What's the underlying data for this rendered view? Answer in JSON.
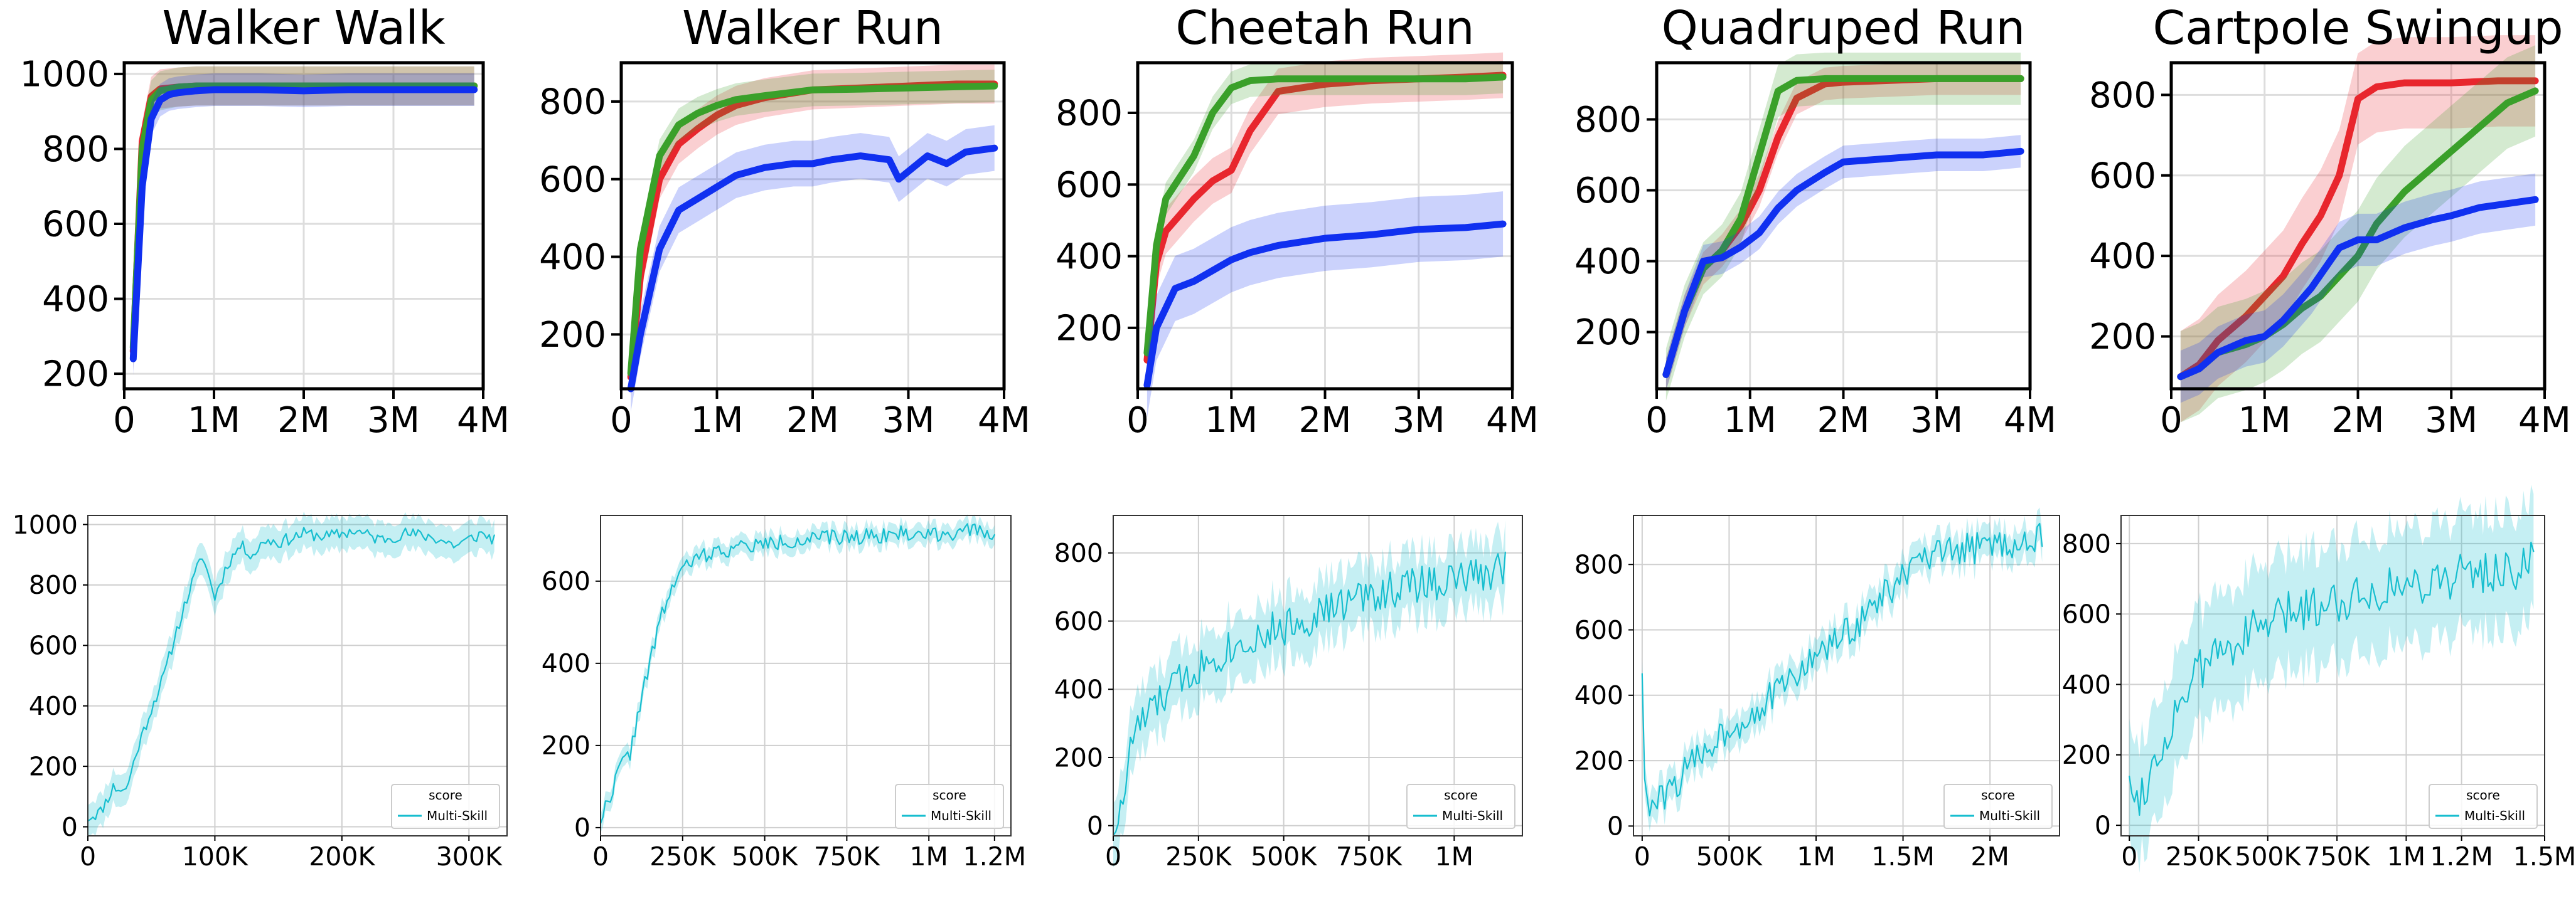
{
  "chart_data": [
    {
      "type": "line",
      "title": "Walker Walk",
      "xticks": [
        "0",
        "1M",
        "2M",
        "3M",
        "4M"
      ],
      "xlim": [
        0,
        4000000
      ],
      "yticks": [
        "200",
        "400",
        "600",
        "800",
        "1000"
      ],
      "ylim": [
        160,
        1030
      ],
      "series": [
        {
          "color": "#e8262d",
          "band": 0.06,
          "x": [
            100000,
            200000,
            300000,
            400000,
            600000,
            800000,
            1000000,
            1500000,
            2000000,
            2500000,
            3000000,
            3500000,
            3900000
          ],
          "y": [
            260,
            820,
            940,
            960,
            965,
            968,
            968,
            968,
            968,
            968,
            968,
            968,
            968
          ]
        },
        {
          "color": "#3aa02a",
          "band": 0.06,
          "x": [
            100000,
            200000,
            300000,
            400000,
            600000,
            800000,
            1000000,
            1500000,
            2000000,
            2500000,
            3000000,
            3500000,
            3900000
          ],
          "y": [
            270,
            800,
            930,
            955,
            965,
            968,
            968,
            968,
            968,
            968,
            968,
            968,
            968
          ]
        },
        {
          "color": "#1030f0",
          "band": 0.05,
          "x": [
            100000,
            200000,
            300000,
            400000,
            500000,
            600000,
            800000,
            1000000,
            1500000,
            2000000,
            2500000,
            3000000,
            3500000,
            3900000
          ],
          "y": [
            240,
            700,
            880,
            930,
            945,
            950,
            955,
            958,
            958,
            955,
            958,
            958,
            958,
            958
          ]
        }
      ]
    },
    {
      "type": "line",
      "title": "Walker Run",
      "xticks": [
        "0",
        "1M",
        "2M",
        "3M",
        "4M"
      ],
      "xlim": [
        0,
        4000000
      ],
      "yticks": [
        "200",
        "400",
        "600",
        "800"
      ],
      "ylim": [
        60,
        900
      ],
      "series": [
        {
          "color": "#e8262d",
          "band": 0.06,
          "x": [
            100000,
            200000,
            400000,
            600000,
            800000,
            1000000,
            1200000,
            1500000,
            2000000,
            2500000,
            3000000,
            3500000,
            3900000
          ],
          "y": [
            90,
            350,
            600,
            690,
            730,
            765,
            790,
            810,
            830,
            835,
            840,
            845,
            845
          ]
        },
        {
          "color": "#3aa02a",
          "band": 0.05,
          "x": [
            100000,
            200000,
            400000,
            600000,
            800000,
            1000000,
            1200000,
            1500000,
            2000000,
            2500000,
            3000000,
            3500000,
            3900000
          ],
          "y": [
            100,
            420,
            660,
            740,
            770,
            790,
            805,
            815,
            830,
            832,
            835,
            838,
            840
          ]
        },
        {
          "color": "#1030f0",
          "band": 0.07,
          "x": [
            100000,
            200000,
            400000,
            600000,
            800000,
            1000000,
            1200000,
            1500000,
            1800000,
            2000000,
            2200000,
            2500000,
            2800000,
            2900000,
            3200000,
            3400000,
            3600000,
            3900000
          ],
          "y": [
            60,
            200,
            420,
            520,
            550,
            580,
            610,
            630,
            640,
            640,
            650,
            660,
            650,
            600,
            660,
            640,
            670,
            680
          ]
        }
      ]
    },
    {
      "type": "line",
      "title": "Cheetah Run",
      "xticks": [
        "0",
        "1M",
        "2M",
        "3M",
        "4M"
      ],
      "xlim": [
        0,
        4000000
      ],
      "yticks": [
        "200",
        "400",
        "600",
        "800"
      ],
      "ylim": [
        30,
        940
      ],
      "series": [
        {
          "color": "#e8262d",
          "band": 0.07,
          "x": [
            100000,
            200000,
            300000,
            400000,
            600000,
            800000,
            1000000,
            1200000,
            1500000,
            2000000,
            2500000,
            3000000,
            3500000,
            3900000
          ],
          "y": [
            110,
            380,
            470,
            500,
            560,
            610,
            640,
            750,
            860,
            880,
            890,
            895,
            900,
            905
          ]
        },
        {
          "color": "#3aa02a",
          "band": 0.05,
          "x": [
            100000,
            200000,
            300000,
            400000,
            600000,
            800000,
            1000000,
            1200000,
            1500000,
            2000000,
            2500000,
            3000000,
            3500000,
            3900000
          ],
          "y": [
            130,
            430,
            560,
            600,
            680,
            800,
            870,
            890,
            895,
            895,
            895,
            895,
            895,
            900
          ]
        },
        {
          "color": "#1030f0",
          "band": 0.1,
          "x": [
            100000,
            200000,
            400000,
            600000,
            800000,
            1000000,
            1200000,
            1500000,
            2000000,
            2500000,
            3000000,
            3500000,
            3900000
          ],
          "y": [
            40,
            200,
            310,
            330,
            360,
            390,
            410,
            430,
            450,
            460,
            475,
            480,
            490
          ]
        }
      ]
    },
    {
      "type": "line",
      "title": "Quadruped Run",
      "xticks": [
        "0",
        "1M",
        "2M",
        "3M",
        "4M"
      ],
      "xlim": [
        0,
        4000000
      ],
      "yticks": [
        "200",
        "400",
        "600",
        "800"
      ],
      "ylim": [
        40,
        960
      ],
      "series": [
        {
          "color": "#e8262d",
          "band": 0.05,
          "x": [
            100000,
            300000,
            500000,
            700000,
            900000,
            1100000,
            1300000,
            1500000,
            1800000,
            2000000,
            2500000,
            3000000,
            3500000,
            3900000
          ],
          "y": [
            80,
            260,
            380,
            430,
            500,
            600,
            750,
            860,
            900,
            905,
            910,
            915,
            915,
            915
          ]
        },
        {
          "color": "#3aa02a",
          "band": 0.08,
          "x": [
            100000,
            300000,
            500000,
            700000,
            900000,
            1100000,
            1300000,
            1500000,
            1800000,
            2000000,
            2500000,
            3000000,
            3500000,
            3900000
          ],
          "y": [
            80,
            260,
            380,
            430,
            520,
            700,
            880,
            910,
            915,
            915,
            915,
            915,
            915,
            915
          ]
        },
        {
          "color": "#1030f0",
          "band": 0.05,
          "x": [
            100000,
            300000,
            500000,
            700000,
            900000,
            1100000,
            1300000,
            1500000,
            1800000,
            2000000,
            2500000,
            3000000,
            3500000,
            3900000
          ],
          "y": [
            80,
            260,
            400,
            410,
            440,
            480,
            550,
            600,
            650,
            680,
            690,
            700,
            700,
            710
          ]
        }
      ]
    },
    {
      "type": "line",
      "title": "Cartpole Swingup",
      "xticks": [
        "0",
        "1M",
        "2M",
        "3M",
        "4M"
      ],
      "xlim": [
        0,
        4000000
      ],
      "yticks": [
        "200",
        "400",
        "600",
        "800"
      ],
      "ylim": [
        70,
        880
      ],
      "series": [
        {
          "color": "#e8262d",
          "band": 0.14,
          "x": [
            100000,
            300000,
            500000,
            800000,
            1000000,
            1200000,
            1400000,
            1600000,
            1800000,
            2000000,
            2200000,
            2500000,
            3000000,
            3500000,
            3900000
          ],
          "y": [
            100,
            130,
            190,
            250,
            300,
            350,
            430,
            500,
            600,
            790,
            820,
            830,
            830,
            835,
            835
          ]
        },
        {
          "color": "#3aa02a",
          "band": 0.14,
          "x": [
            100000,
            300000,
            500000,
            800000,
            1000000,
            1200000,
            1400000,
            1600000,
            1800000,
            2000000,
            2200000,
            2500000,
            2800000,
            3000000,
            3300000,
            3600000,
            3900000
          ],
          "y": [
            100,
            120,
            160,
            180,
            200,
            230,
            270,
            300,
            350,
            400,
            480,
            560,
            620,
            660,
            720,
            780,
            810
          ]
        },
        {
          "color": "#1030f0",
          "band": 0.08,
          "x": [
            100000,
            300000,
            500000,
            800000,
            1000000,
            1200000,
            1500000,
            1800000,
            2000000,
            2200000,
            2500000,
            2800000,
            3000000,
            3300000,
            3600000,
            3900000
          ],
          "y": [
            100,
            120,
            160,
            190,
            200,
            240,
            320,
            420,
            440,
            440,
            470,
            490,
            500,
            520,
            530,
            540
          ]
        }
      ]
    },
    {
      "type": "line",
      "xticks": [
        "0",
        "100K",
        "200K",
        "300K"
      ],
      "xlim": [
        0,
        330000
      ],
      "yticks": [
        "0",
        "200",
        "400",
        "600",
        "800",
        "1000"
      ],
      "ylim": [
        -30,
        1030
      ],
      "legend": "score",
      "legend_loc": "lower right",
      "series": [
        {
          "name": "Multi-Skill",
          "color": "#17becf",
          "band": 0.05,
          "seed": 11,
          "noise": 0.02,
          "x": [
            0,
            10000,
            20000,
            30000,
            40000,
            50000,
            60000,
            70000,
            80000,
            90000,
            100000,
            110000,
            120000,
            130000,
            140000,
            150000,
            170000,
            190000,
            210000,
            230000,
            250000,
            270000,
            290000,
            310000,
            320000
          ],
          "y": [
            30,
            50,
            130,
            120,
            270,
            390,
            500,
            650,
            780,
            900,
            760,
            870,
            930,
            900,
            950,
            940,
            970,
            960,
            980,
            950,
            970,
            960,
            930,
            970,
            950
          ]
        }
      ]
    },
    {
      "type": "line",
      "xticks": [
        "0",
        "250K",
        "500K",
        "750K",
        "1M",
        "1.2M"
      ],
      "xlim": [
        0,
        1250000
      ],
      "yticks": [
        "0",
        "200",
        "400",
        "600"
      ],
      "ylim": [
        -20,
        760
      ],
      "legend": "score",
      "legend_loc": "lower right",
      "series": [
        {
          "name": "Multi-Skill",
          "color": "#17becf",
          "band": 0.03,
          "seed": 22,
          "noise": 0.025,
          "x": [
            0,
            30000,
            60000,
            90000,
            120000,
            150000,
            180000,
            210000,
            240000,
            270000,
            300000,
            400000,
            500000,
            600000,
            700000,
            800000,
            900000,
            1000000,
            1100000,
            1200000
          ],
          "y": [
            20,
            80,
            150,
            180,
            300,
            400,
            500,
            570,
            620,
            640,
            660,
            680,
            690,
            700,
            705,
            710,
            715,
            715,
            720,
            720
          ]
        }
      ]
    },
    {
      "type": "line",
      "xticks": [
        "0",
        "250K",
        "500K",
        "750K",
        "1M"
      ],
      "xlim": [
        0,
        1200000
      ],
      "yticks": [
        "0",
        "200",
        "400",
        "600",
        "800"
      ],
      "ylim": [
        -30,
        910
      ],
      "legend": "score",
      "legend_loc": "lower right",
      "series": [
        {
          "name": "Multi-Skill",
          "color": "#17becf",
          "band": 0.1,
          "seed": 33,
          "noise": 0.06,
          "x": [
            0,
            20000,
            40000,
            60000,
            100000,
            150000,
            200000,
            300000,
            400000,
            500000,
            600000,
            700000,
            800000,
            900000,
            1000000,
            1100000,
            1150000
          ],
          "y": [
            0,
            20,
            150,
            280,
            320,
            380,
            430,
            500,
            550,
            580,
            620,
            660,
            690,
            710,
            720,
            740,
            770
          ]
        }
      ]
    },
    {
      "type": "line",
      "xticks": [
        "0",
        "500K",
        "1M",
        "1.5M",
        "2M"
      ],
      "xlim": [
        -50000,
        2400000
      ],
      "yticks": [
        "0",
        "200",
        "400",
        "600",
        "800"
      ],
      "ylim": [
        -30,
        950
      ],
      "legend": "score",
      "legend_loc": "lower right",
      "series": [
        {
          "name": "Multi-Skill",
          "color": "#17becf",
          "band": 0.05,
          "seed": 44,
          "noise": 0.05,
          "x": [
            0,
            20000,
            60000,
            150000,
            300000,
            450000,
            600000,
            800000,
            1000000,
            1200000,
            1400000,
            1600000,
            1800000,
            2000000,
            2200000,
            2300000
          ],
          "y": [
            490,
            40,
            60,
            100,
            200,
            280,
            330,
            420,
            520,
            600,
            710,
            810,
            840,
            860,
            870,
            880
          ]
        }
      ]
    },
    {
      "type": "line",
      "xticks": [
        "0",
        "250K",
        "500K",
        "750K",
        "1M",
        "1.2M",
        "1.5M"
      ],
      "xlim": [
        -30000,
        1500000
      ],
      "yticks": [
        "0",
        "200",
        "400",
        "600",
        "800"
      ],
      "ylim": [
        -30,
        880
      ],
      "legend": "score",
      "legend_loc": "lower right",
      "series": [
        {
          "name": "Multi-Skill",
          "color": "#17becf",
          "band": 0.18,
          "seed": 55,
          "noise": 0.07,
          "x": [
            0,
            20000,
            50000,
            100000,
            150000,
            200000,
            300000,
            400000,
            500000,
            600000,
            700000,
            800000,
            900000,
            1000000,
            1100000,
            1200000,
            1300000,
            1400000,
            1460000
          ],
          "y": [
            170,
            60,
            110,
            180,
            290,
            380,
            480,
            530,
            570,
            610,
            630,
            650,
            670,
            680,
            700,
            710,
            720,
            730,
            750
          ]
        }
      ]
    }
  ]
}
